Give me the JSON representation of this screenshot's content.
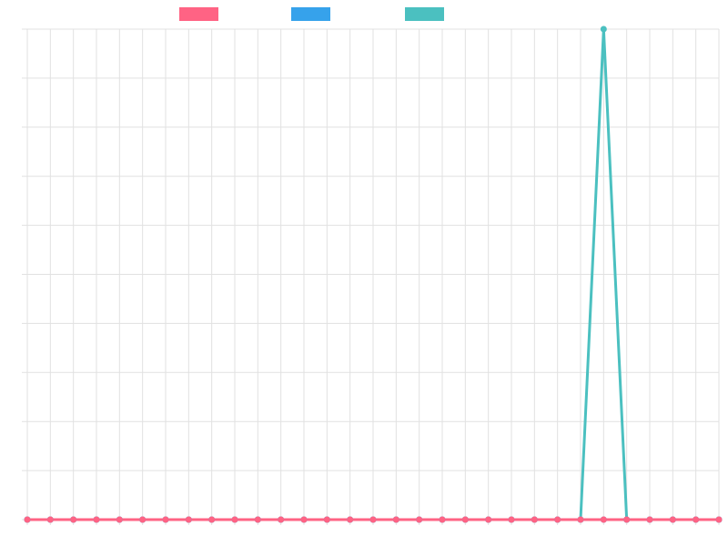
{
  "chart_data": {
    "type": "line",
    "x_count": 31,
    "ylim": [
      0,
      1
    ],
    "grid": true,
    "legend_position": "top",
    "series": [
      {
        "color": "#ff6384",
        "values": [
          0,
          0,
          0,
          0,
          0,
          0,
          0,
          0,
          0,
          0,
          0,
          0,
          0,
          0,
          0,
          0,
          0,
          0,
          0,
          0,
          0,
          0,
          0,
          0,
          0,
          0,
          0,
          0,
          0,
          0,
          0
        ]
      },
      {
        "color": "#36a2eb",
        "values": [
          0,
          0,
          0,
          0,
          0,
          0,
          0,
          0,
          0,
          0,
          0,
          0,
          0,
          0,
          0,
          0,
          0,
          0,
          0,
          0,
          0,
          0,
          0,
          0,
          0,
          0,
          0,
          0,
          0,
          0,
          0
        ]
      },
      {
        "color": "#4bc0c0",
        "values": [
          0,
          0,
          0,
          0,
          0,
          0,
          0,
          0,
          0,
          0,
          0,
          0,
          0,
          0,
          0,
          0,
          0,
          0,
          0,
          0,
          0,
          0,
          0,
          0,
          0,
          1,
          0,
          0,
          0,
          0,
          0
        ]
      }
    ]
  }
}
